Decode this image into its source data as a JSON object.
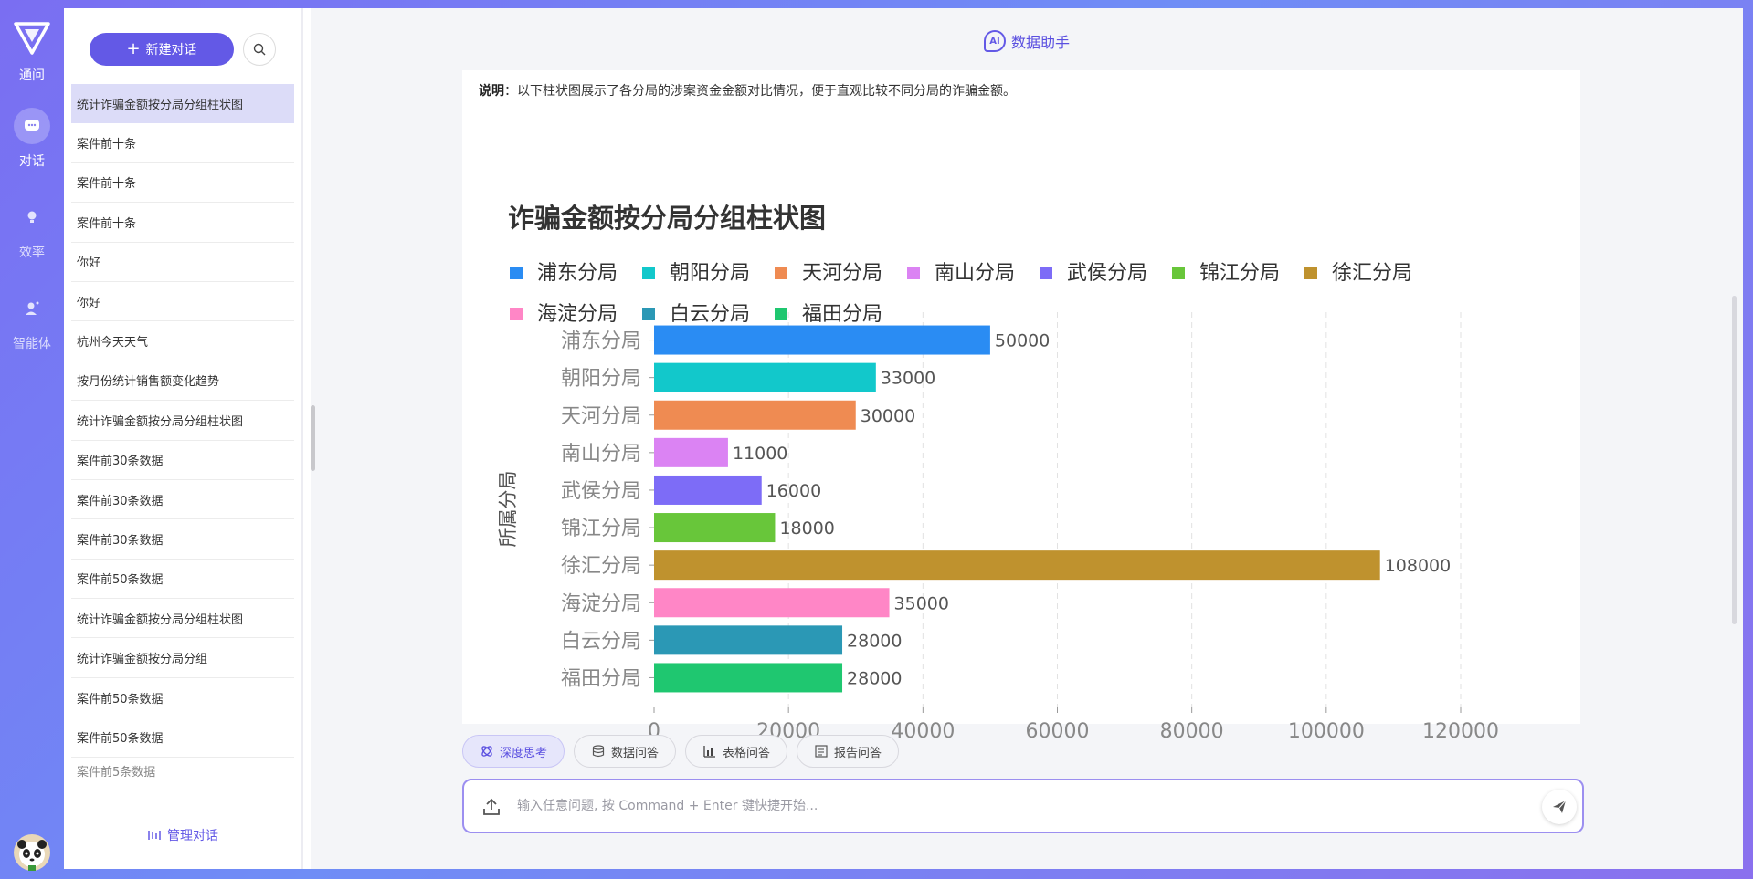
{
  "rail": {
    "logo_label": "通问",
    "items": [
      {
        "label": "对话",
        "icon": "chat-bubble-icon",
        "active": true
      },
      {
        "label": "效率",
        "icon": "lightbulb-icon",
        "active": false
      },
      {
        "label": "智能体",
        "icon": "agent-icon",
        "active": false
      }
    ]
  },
  "history": {
    "new_chat_label": "新建对话",
    "items": [
      "统计诈骗金额按分局分组柱状图",
      "案件前十条",
      "案件前十条",
      "案件前十条",
      "你好",
      "你好",
      "杭州今天天气",
      "按月份统计销售额变化趋势",
      "统计诈骗金额按分局分组柱状图",
      "案件前30条数据",
      "案件前30条数据",
      "案件前30条数据",
      "案件前50条数据",
      "统计诈骗金额按分局分组柱状图",
      "统计诈骗金额按分局分组",
      "案件前50条数据",
      "案件前50条数据",
      "案件前5条数据"
    ],
    "manage_label": "管理对话"
  },
  "chat": {
    "title": "数据助手",
    "ai_badge": "AI",
    "desc_label": "说明",
    "desc_text": "：以下柱状图展示了各分局的涉案资金金额对比情况，便于直观比较不同分局的诈骗金额。"
  },
  "chart_data": {
    "type": "bar",
    "orientation": "horizontal",
    "title": "诈骗金额按分局分组柱状图",
    "ylabel": "所属分局",
    "xlabel": "",
    "categories": [
      "浦东分局",
      "朝阳分局",
      "天河分局",
      "南山分局",
      "武侯分局",
      "锦江分局",
      "徐汇分局",
      "海淀分局",
      "白云分局",
      "福田分局"
    ],
    "values": [
      50000,
      33000,
      30000,
      11000,
      16000,
      18000,
      108000,
      35000,
      28000,
      28000
    ],
    "colors": [
      "#2a8cf3",
      "#12c8cb",
      "#ef8b52",
      "#db83f3",
      "#7d6cf7",
      "#68c63a",
      "#bf922e",
      "#ff86c6",
      "#2b98b5",
      "#1fc770"
    ],
    "xlim": [
      0,
      120000
    ],
    "xticks": [
      "0",
      "20000",
      "40000",
      "60000",
      "80000",
      "100000",
      "120000"
    ],
    "xtick_values": [
      0,
      20000,
      40000,
      60000,
      80000,
      100000,
      120000
    ],
    "grid": "vertical dashed",
    "legend_position": "top-left"
  },
  "modes": [
    {
      "label": "深度思考",
      "icon": "deep-think-icon",
      "active": true
    },
    {
      "label": "数据问答",
      "icon": "database-icon",
      "active": false
    },
    {
      "label": "表格问答",
      "icon": "bar-chart-icon",
      "active": false
    },
    {
      "label": "报告问答",
      "icon": "report-icon",
      "active": false
    }
  ],
  "composer": {
    "placeholder": "输入任意问题, 按 Command + Enter 键快捷开始..."
  }
}
